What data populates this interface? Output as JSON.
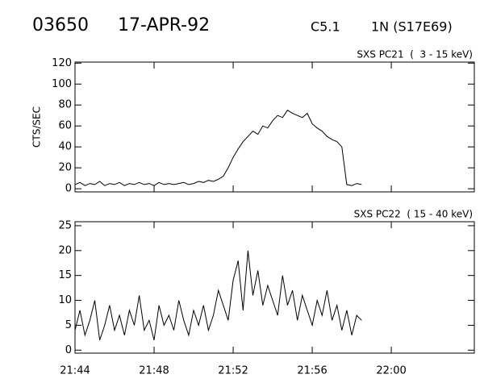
{
  "header": {
    "id": "03650",
    "date": "17-APR-92",
    "class": "C5.1",
    "location": "1N (S17E69)"
  },
  "chart_data": [
    {
      "type": "line",
      "label": "SXS PC21  (  3 - 15 keV)",
      "ylabel": "CTS/SEC",
      "xlim": [
        1304,
        1324.2
      ],
      "xticks": [
        1304,
        1308,
        1312,
        1316,
        1320
      ],
      "ylim": [
        -3,
        121
      ],
      "yticks": [
        0,
        20,
        40,
        60,
        80,
        100,
        120
      ],
      "series": [
        {
          "color": "#000000",
          "x": [
            1304,
            1304.25,
            1304.5,
            1304.75,
            1305,
            1305.25,
            1305.5,
            1305.75,
            1306,
            1306.25,
            1306.5,
            1306.75,
            1307,
            1307.25,
            1307.5,
            1307.75,
            1308,
            1308.25,
            1308.5,
            1308.75,
            1309,
            1309.25,
            1309.5,
            1309.75,
            1310,
            1310.25,
            1310.5,
            1310.75,
            1311,
            1311.25,
            1311.5,
            1311.75,
            1312,
            1312.25,
            1312.5,
            1312.75,
            1313,
            1313.25,
            1313.5,
            1313.75,
            1314,
            1314.25,
            1314.5,
            1314.75,
            1315,
            1315.25,
            1315.5,
            1315.75,
            1316,
            1316.25,
            1316.5,
            1316.75,
            1317,
            1317.25,
            1317.5,
            1317.75,
            1318,
            1318.25,
            1318.5
          ],
          "values": [
            4,
            6,
            3,
            5,
            4,
            7,
            3,
            5,
            4,
            6,
            3,
            5,
            4,
            6,
            4,
            5,
            3,
            6,
            4,
            5,
            4,
            5,
            6,
            4,
            5,
            7,
            6,
            8,
            7,
            9,
            12,
            20,
            30,
            38,
            45,
            50,
            55,
            52,
            60,
            58,
            65,
            70,
            68,
            75,
            72,
            70,
            68,
            72,
            62,
            58,
            55,
            50,
            47,
            45,
            40,
            4,
            3,
            5,
            4
          ]
        }
      ]
    },
    {
      "type": "line",
      "label": "SXS PC22  ( 15 - 40 keV)",
      "xlim": [
        1304,
        1324.2
      ],
      "xticks": [
        {
          "value": 1304,
          "label": "21:44"
        },
        {
          "value": 1308,
          "label": "21:48"
        },
        {
          "value": 1312,
          "label": "21:52"
        },
        {
          "value": 1316,
          "label": "21:56"
        },
        {
          "value": 1320,
          "label": "22:00"
        }
      ],
      "ylim": [
        -0.6,
        25.8
      ],
      "yticks": [
        0,
        5,
        10,
        15,
        20,
        25
      ],
      "series": [
        {
          "color": "#000000",
          "x": [
            1304,
            1304.25,
            1304.5,
            1304.75,
            1305,
            1305.25,
            1305.5,
            1305.75,
            1306,
            1306.25,
            1306.5,
            1306.75,
            1307,
            1307.25,
            1307.5,
            1307.75,
            1308,
            1308.25,
            1308.5,
            1308.75,
            1309,
            1309.25,
            1309.5,
            1309.75,
            1310,
            1310.25,
            1310.5,
            1310.75,
            1311,
            1311.25,
            1311.5,
            1311.75,
            1312,
            1312.25,
            1312.5,
            1312.75,
            1313,
            1313.25,
            1313.5,
            1313.75,
            1314,
            1314.25,
            1314.5,
            1314.75,
            1315,
            1315.25,
            1315.5,
            1315.75,
            1316,
            1316.25,
            1316.5,
            1316.75,
            1317,
            1317.25,
            1317.5,
            1317.75,
            1318,
            1318.25,
            1318.5
          ],
          "values": [
            4,
            8,
            3,
            6,
            10,
            2,
            5,
            9,
            4,
            7,
            3,
            8,
            5,
            11,
            4,
            6,
            2,
            9,
            5,
            7,
            4,
            10,
            6,
            3,
            8,
            5,
            9,
            4,
            7,
            12,
            9,
            6,
            14,
            18,
            8,
            20,
            11,
            16,
            9,
            13,
            10,
            7,
            15,
            9,
            12,
            6,
            11,
            8,
            5,
            10,
            7,
            12,
            6,
            9,
            4,
            8,
            3,
            7,
            6
          ]
        }
      ]
    }
  ]
}
